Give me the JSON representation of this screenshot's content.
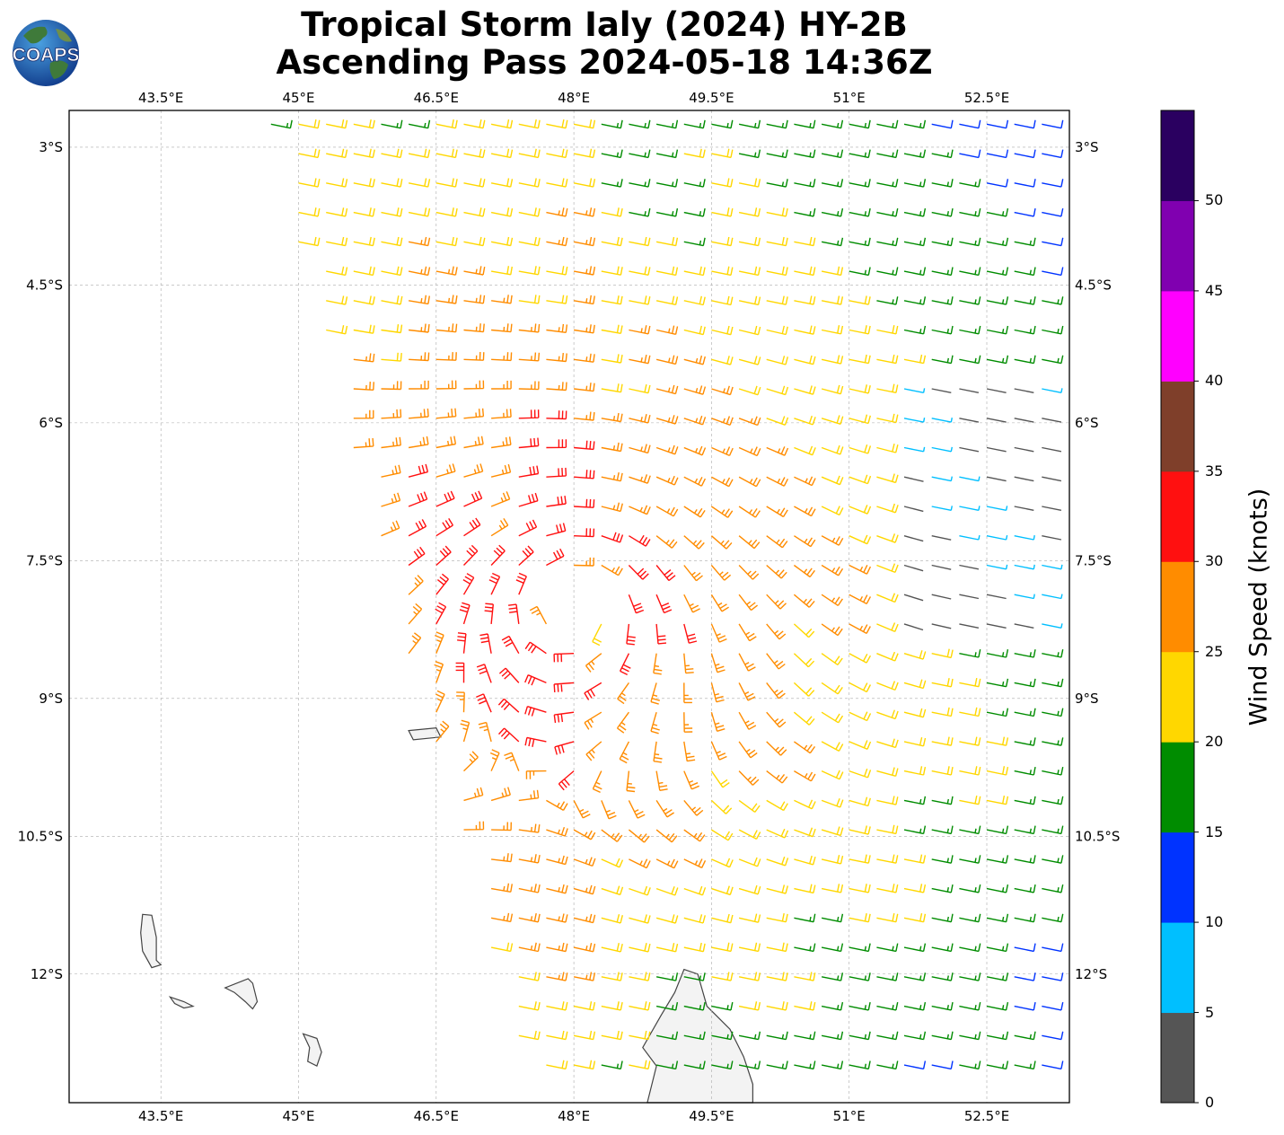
{
  "title": {
    "line1": "Tropical Storm Ialy (2024) HY-2B",
    "line2": "Ascending Pass 2024-05-18 14:36Z"
  },
  "logo": {
    "text": "COAPS",
    "icon": "globe-logo-icon"
  },
  "map": {
    "lon_range": [
      42.5,
      53.4
    ],
    "lat_range": [
      -13.4,
      -2.6
    ],
    "lon_ticks": [
      {
        "value": 43.5,
        "label": "43.5°E"
      },
      {
        "value": 45,
        "label": "45°E"
      },
      {
        "value": 46.5,
        "label": "46.5°E"
      },
      {
        "value": 48,
        "label": "48°E"
      },
      {
        "value": 49.5,
        "label": "49.5°E"
      },
      {
        "value": 51,
        "label": "51°E"
      },
      {
        "value": 52.5,
        "label": "52.5°E"
      }
    ],
    "lat_ticks": [
      {
        "value": -3,
        "label": "3°S"
      },
      {
        "value": -4.5,
        "label": "4.5°S"
      },
      {
        "value": -6,
        "label": "6°S"
      },
      {
        "value": -7.5,
        "label": "7.5°S"
      },
      {
        "value": -9,
        "label": "9°S"
      },
      {
        "value": -10.5,
        "label": "10.5°S"
      },
      {
        "value": -12,
        "label": "12°S"
      }
    ],
    "gridlines": true,
    "storm_center": {
      "lon": 48.0,
      "lat": -8.0
    },
    "land_color": "#f3f3f3",
    "coast_color": "#444444"
  },
  "colorbar": {
    "label": "Wind Speed (knots)",
    "ticks": [
      "0",
      "5",
      "10",
      "15",
      "20",
      "25",
      "30",
      "35",
      "40",
      "45",
      "50"
    ],
    "bins": [
      {
        "min": 0,
        "max": 5,
        "color": "#555555"
      },
      {
        "min": 5,
        "max": 10,
        "color": "#00bfff"
      },
      {
        "min": 10,
        "max": 15,
        "color": "#0033ff"
      },
      {
        "min": 15,
        "max": 20,
        "color": "#008c00"
      },
      {
        "min": 20,
        "max": 25,
        "color": "#ffd700"
      },
      {
        "min": 25,
        "max": 30,
        "color": "#ff8c00"
      },
      {
        "min": 30,
        "max": 35,
        "color": "#ff1010"
      },
      {
        "min": 35,
        "max": 40,
        "color": "#7f3f2a"
      },
      {
        "min": 40,
        "max": 45,
        "color": "#ff00ff"
      },
      {
        "min": 45,
        "max": 50,
        "color": "#8000b0"
      },
      {
        "min": 50,
        "max": 55,
        "color": "#2a0060"
      }
    ]
  }
}
